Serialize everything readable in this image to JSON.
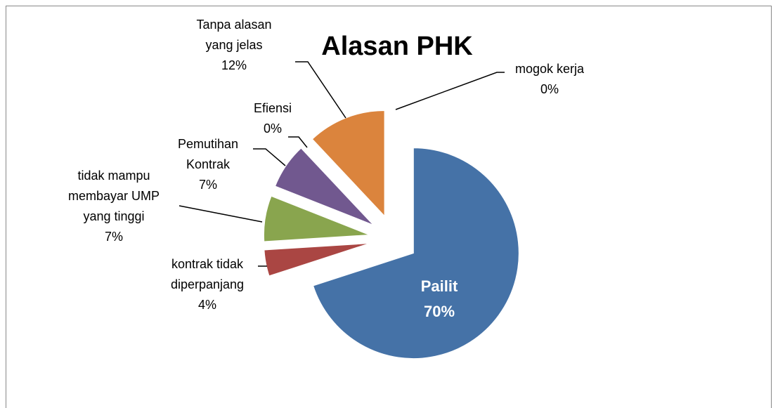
{
  "chart_data": {
    "type": "pie",
    "title": "Alasan PHK",
    "categories": [
      "Pailit",
      "kontrak tidak diperpanjang",
      "tidak mampu membayar UMP yang tinggi",
      "Pemutihan Kontrak",
      "Efiensi",
      "Tanpa alasan yang jelas",
      "mogok kerja"
    ],
    "values": [
      70,
      4,
      7,
      7,
      0,
      12,
      0
    ],
    "value_labels": [
      "70%",
      "4%",
      "7%",
      "7%",
      "0%",
      "12%",
      "0%"
    ],
    "colors": [
      "#4572a7",
      "#aa4643",
      "#89a54e",
      "#71588f",
      "#4198af",
      "#db843d",
      "#93a9cf"
    ]
  }
}
